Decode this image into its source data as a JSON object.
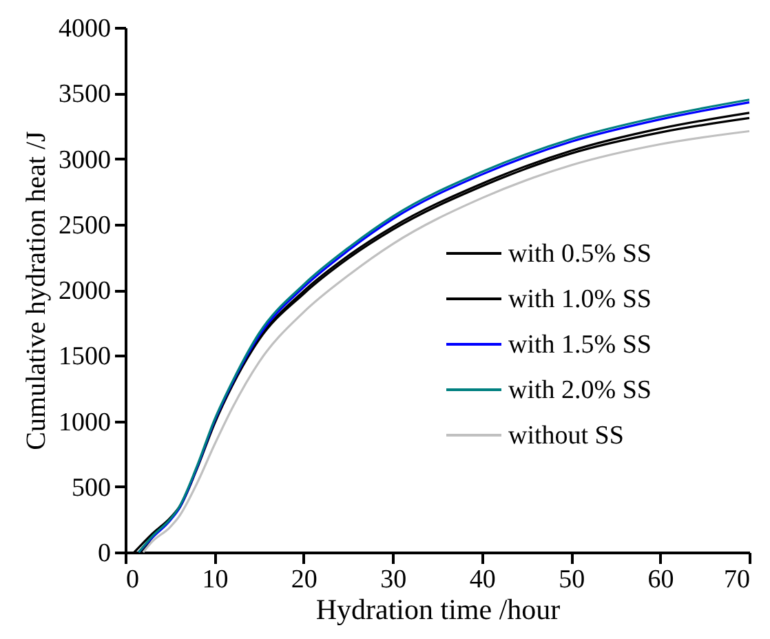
{
  "chart_data": {
    "type": "line",
    "xlabel": "Hydration time  /hour",
    "ylabel": "Cumulative hydration heat /J",
    "x": [
      1.5,
      3,
      5,
      6,
      8,
      10,
      12,
      15,
      20,
      25,
      30,
      40,
      50,
      60,
      70
    ],
    "series": [
      {
        "name": "with 0.5% SS",
        "color": "#000000",
        "x": [
          1.8,
          3,
          5,
          6,
          8,
          10,
          12,
          15,
          20,
          25,
          30,
          40,
          50,
          60,
          70
        ],
        "values": [
          0,
          110,
          250,
          330,
          630,
          980,
          1270,
          1620,
          1970,
          2240,
          2460,
          2790,
          3040,
          3200,
          3310
        ]
      },
      {
        "name": "with 1.0% SS",
        "color": "#000000",
        "x": [
          1,
          3,
          5,
          6,
          8,
          10,
          12,
          15,
          20,
          25,
          30,
          40,
          50,
          60,
          70
        ],
        "values": [
          0,
          140,
          260,
          340,
          640,
          990,
          1280,
          1630,
          1990,
          2260,
          2480,
          2810,
          3060,
          3230,
          3350
        ]
      },
      {
        "name": "with 1.5% SS",
        "color": "#0000ff",
        "values": [
          0,
          110,
          240,
          330,
          640,
          1000,
          1290,
          1650,
          2020,
          2300,
          2540,
          2880,
          3130,
          3300,
          3430
        ]
      },
      {
        "name": "with 2.0% SS",
        "color": "#008080",
        "values": [
          0,
          120,
          250,
          340,
          650,
          1010,
          1300,
          1670,
          2040,
          2320,
          2560,
          2900,
          3150,
          3320,
          3450
        ]
      },
      {
        "name": "without SS",
        "color": "#c0c0c0",
        "x": [
          2,
          3,
          5,
          6,
          8,
          10,
          12,
          15,
          20,
          25,
          30,
          40,
          50,
          60,
          70
        ],
        "values": [
          0,
          80,
          190,
          270,
          520,
          820,
          1100,
          1450,
          1830,
          2110,
          2350,
          2700,
          2950,
          3110,
          3210
        ]
      }
    ],
    "xlim": [
      0,
      70
    ],
    "xticks": [
      0,
      10,
      20,
      30,
      40,
      50,
      60,
      70
    ],
    "ylim": [
      0,
      4000
    ],
    "yticks": [
      0,
      500,
      1000,
      1500,
      2000,
      2500,
      3000,
      3500,
      4000
    ],
    "grid": false,
    "legend": "right",
    "marker": "none",
    "line_style": "solid"
  }
}
